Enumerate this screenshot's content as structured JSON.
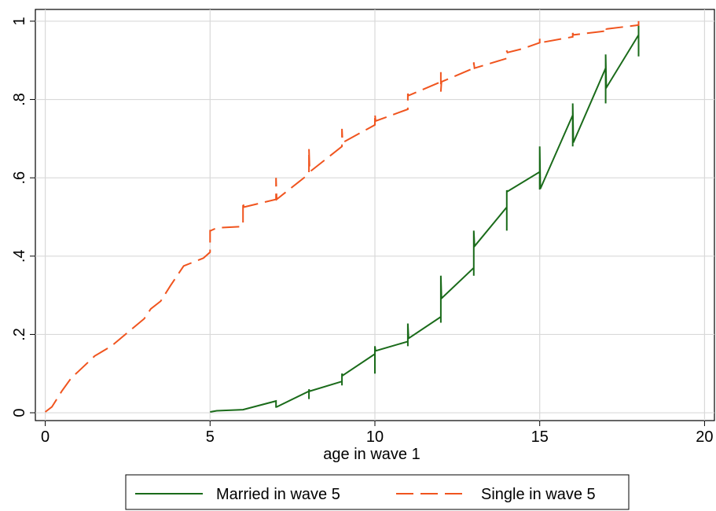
{
  "chart_data": {
    "type": "line",
    "title": "",
    "xlabel": "age in wave 1",
    "ylabel": "",
    "xlim": [
      -0.3,
      20.3
    ],
    "ylim": [
      -0.02,
      1.03
    ],
    "x_ticks": [
      0,
      5,
      10,
      15,
      20
    ],
    "x_tick_labels": [
      "0",
      "5",
      "10",
      "15",
      "20"
    ],
    "y_ticks": [
      0,
      0.2,
      0.4,
      0.6,
      0.8,
      1
    ],
    "y_tick_labels": [
      "0",
      ".2",
      ".4",
      ".6",
      ".8",
      "1"
    ],
    "grid": true,
    "legend_position": "bottom",
    "series": [
      {
        "name": "Married in wave 5",
        "color": "#1a6b1a",
        "dash": "solid",
        "points": [
          [
            5.0,
            0.002
          ],
          [
            5.2,
            0.005
          ],
          [
            6.0,
            0.008
          ],
          [
            7.0,
            0.03
          ],
          [
            7.0,
            0.015
          ],
          [
            7.02,
            0.015
          ],
          [
            8.0,
            0.055
          ],
          [
            8.0,
            0.035
          ],
          [
            8.0,
            0.06
          ],
          [
            8.02,
            0.055
          ],
          [
            9.0,
            0.08
          ],
          [
            9.0,
            0.07
          ],
          [
            9.0,
            0.1
          ],
          [
            9.02,
            0.095
          ],
          [
            10.0,
            0.15
          ],
          [
            10.0,
            0.1
          ],
          [
            10.0,
            0.17
          ],
          [
            10.02,
            0.158
          ],
          [
            11.0,
            0.182
          ],
          [
            11.0,
            0.17
          ],
          [
            11.0,
            0.228
          ],
          [
            11.02,
            0.19
          ],
          [
            12.0,
            0.245
          ],
          [
            12.0,
            0.23
          ],
          [
            12.0,
            0.35
          ],
          [
            12.02,
            0.292
          ],
          [
            13.0,
            0.37
          ],
          [
            13.0,
            0.35
          ],
          [
            13.0,
            0.465
          ],
          [
            13.02,
            0.425
          ],
          [
            14.0,
            0.525
          ],
          [
            14.0,
            0.465
          ],
          [
            14.0,
            0.568
          ],
          [
            14.02,
            0.565
          ],
          [
            15.0,
            0.615
          ],
          [
            15.0,
            0.57
          ],
          [
            15.0,
            0.68
          ],
          [
            15.02,
            0.572
          ],
          [
            16.0,
            0.76
          ],
          [
            16.0,
            0.68
          ],
          [
            16.0,
            0.79
          ],
          [
            16.02,
            0.69
          ],
          [
            17.0,
            0.88
          ],
          [
            17.0,
            0.79
          ],
          [
            17.0,
            0.915
          ],
          [
            17.02,
            0.83
          ],
          [
            18.0,
            0.965
          ],
          [
            18.0,
            0.91
          ],
          [
            18.0,
            0.995
          ]
        ]
      },
      {
        "name": "Single in wave 5",
        "color": "#f0541e",
        "dash": "long-dash",
        "points": [
          [
            0.0,
            0.002
          ],
          [
            0.2,
            0.015
          ],
          [
            0.5,
            0.055
          ],
          [
            0.8,
            0.09
          ],
          [
            1.0,
            0.105
          ],
          [
            1.5,
            0.145
          ],
          [
            2.0,
            0.17
          ],
          [
            2.5,
            0.205
          ],
          [
            3.0,
            0.24
          ],
          [
            3.2,
            0.265
          ],
          [
            3.5,
            0.285
          ],
          [
            3.8,
            0.325
          ],
          [
            4.2,
            0.375
          ],
          [
            4.8,
            0.395
          ],
          [
            5.0,
            0.41
          ],
          [
            5.0,
            0.465
          ],
          [
            5.02,
            0.465
          ],
          [
            5.2,
            0.472
          ],
          [
            5.9,
            0.475
          ],
          [
            6.0,
            0.478
          ],
          [
            6.0,
            0.54
          ],
          [
            6.02,
            0.525
          ],
          [
            7.0,
            0.545
          ],
          [
            7.0,
            0.6
          ],
          [
            7.02,
            0.545
          ],
          [
            8.0,
            0.61
          ],
          [
            8.0,
            0.675
          ],
          [
            8.02,
            0.615
          ],
          [
            9.0,
            0.68
          ],
          [
            9.0,
            0.725
          ],
          [
            9.02,
            0.69
          ],
          [
            10.0,
            0.735
          ],
          [
            10.0,
            0.765
          ],
          [
            10.02,
            0.745
          ],
          [
            11.0,
            0.775
          ],
          [
            11.0,
            0.815
          ],
          [
            11.02,
            0.81
          ],
          [
            12.0,
            0.845
          ],
          [
            12.0,
            0.87
          ],
          [
            12.0,
            0.82
          ],
          [
            12.02,
            0.845
          ],
          [
            13.0,
            0.88
          ],
          [
            13.0,
            0.895
          ],
          [
            13.02,
            0.88
          ],
          [
            14.0,
            0.905
          ],
          [
            14.0,
            0.925
          ],
          [
            14.02,
            0.92
          ],
          [
            14.5,
            0.93
          ],
          [
            15.0,
            0.945
          ],
          [
            15.0,
            0.955
          ],
          [
            15.02,
            0.945
          ],
          [
            16.0,
            0.96
          ],
          [
            16.0,
            0.97
          ],
          [
            16.02,
            0.965
          ],
          [
            17.0,
            0.975
          ],
          [
            17.0,
            0.985
          ],
          [
            17.02,
            0.98
          ],
          [
            18.0,
            0.99
          ],
          [
            18.0,
            1.0
          ]
        ]
      }
    ]
  }
}
